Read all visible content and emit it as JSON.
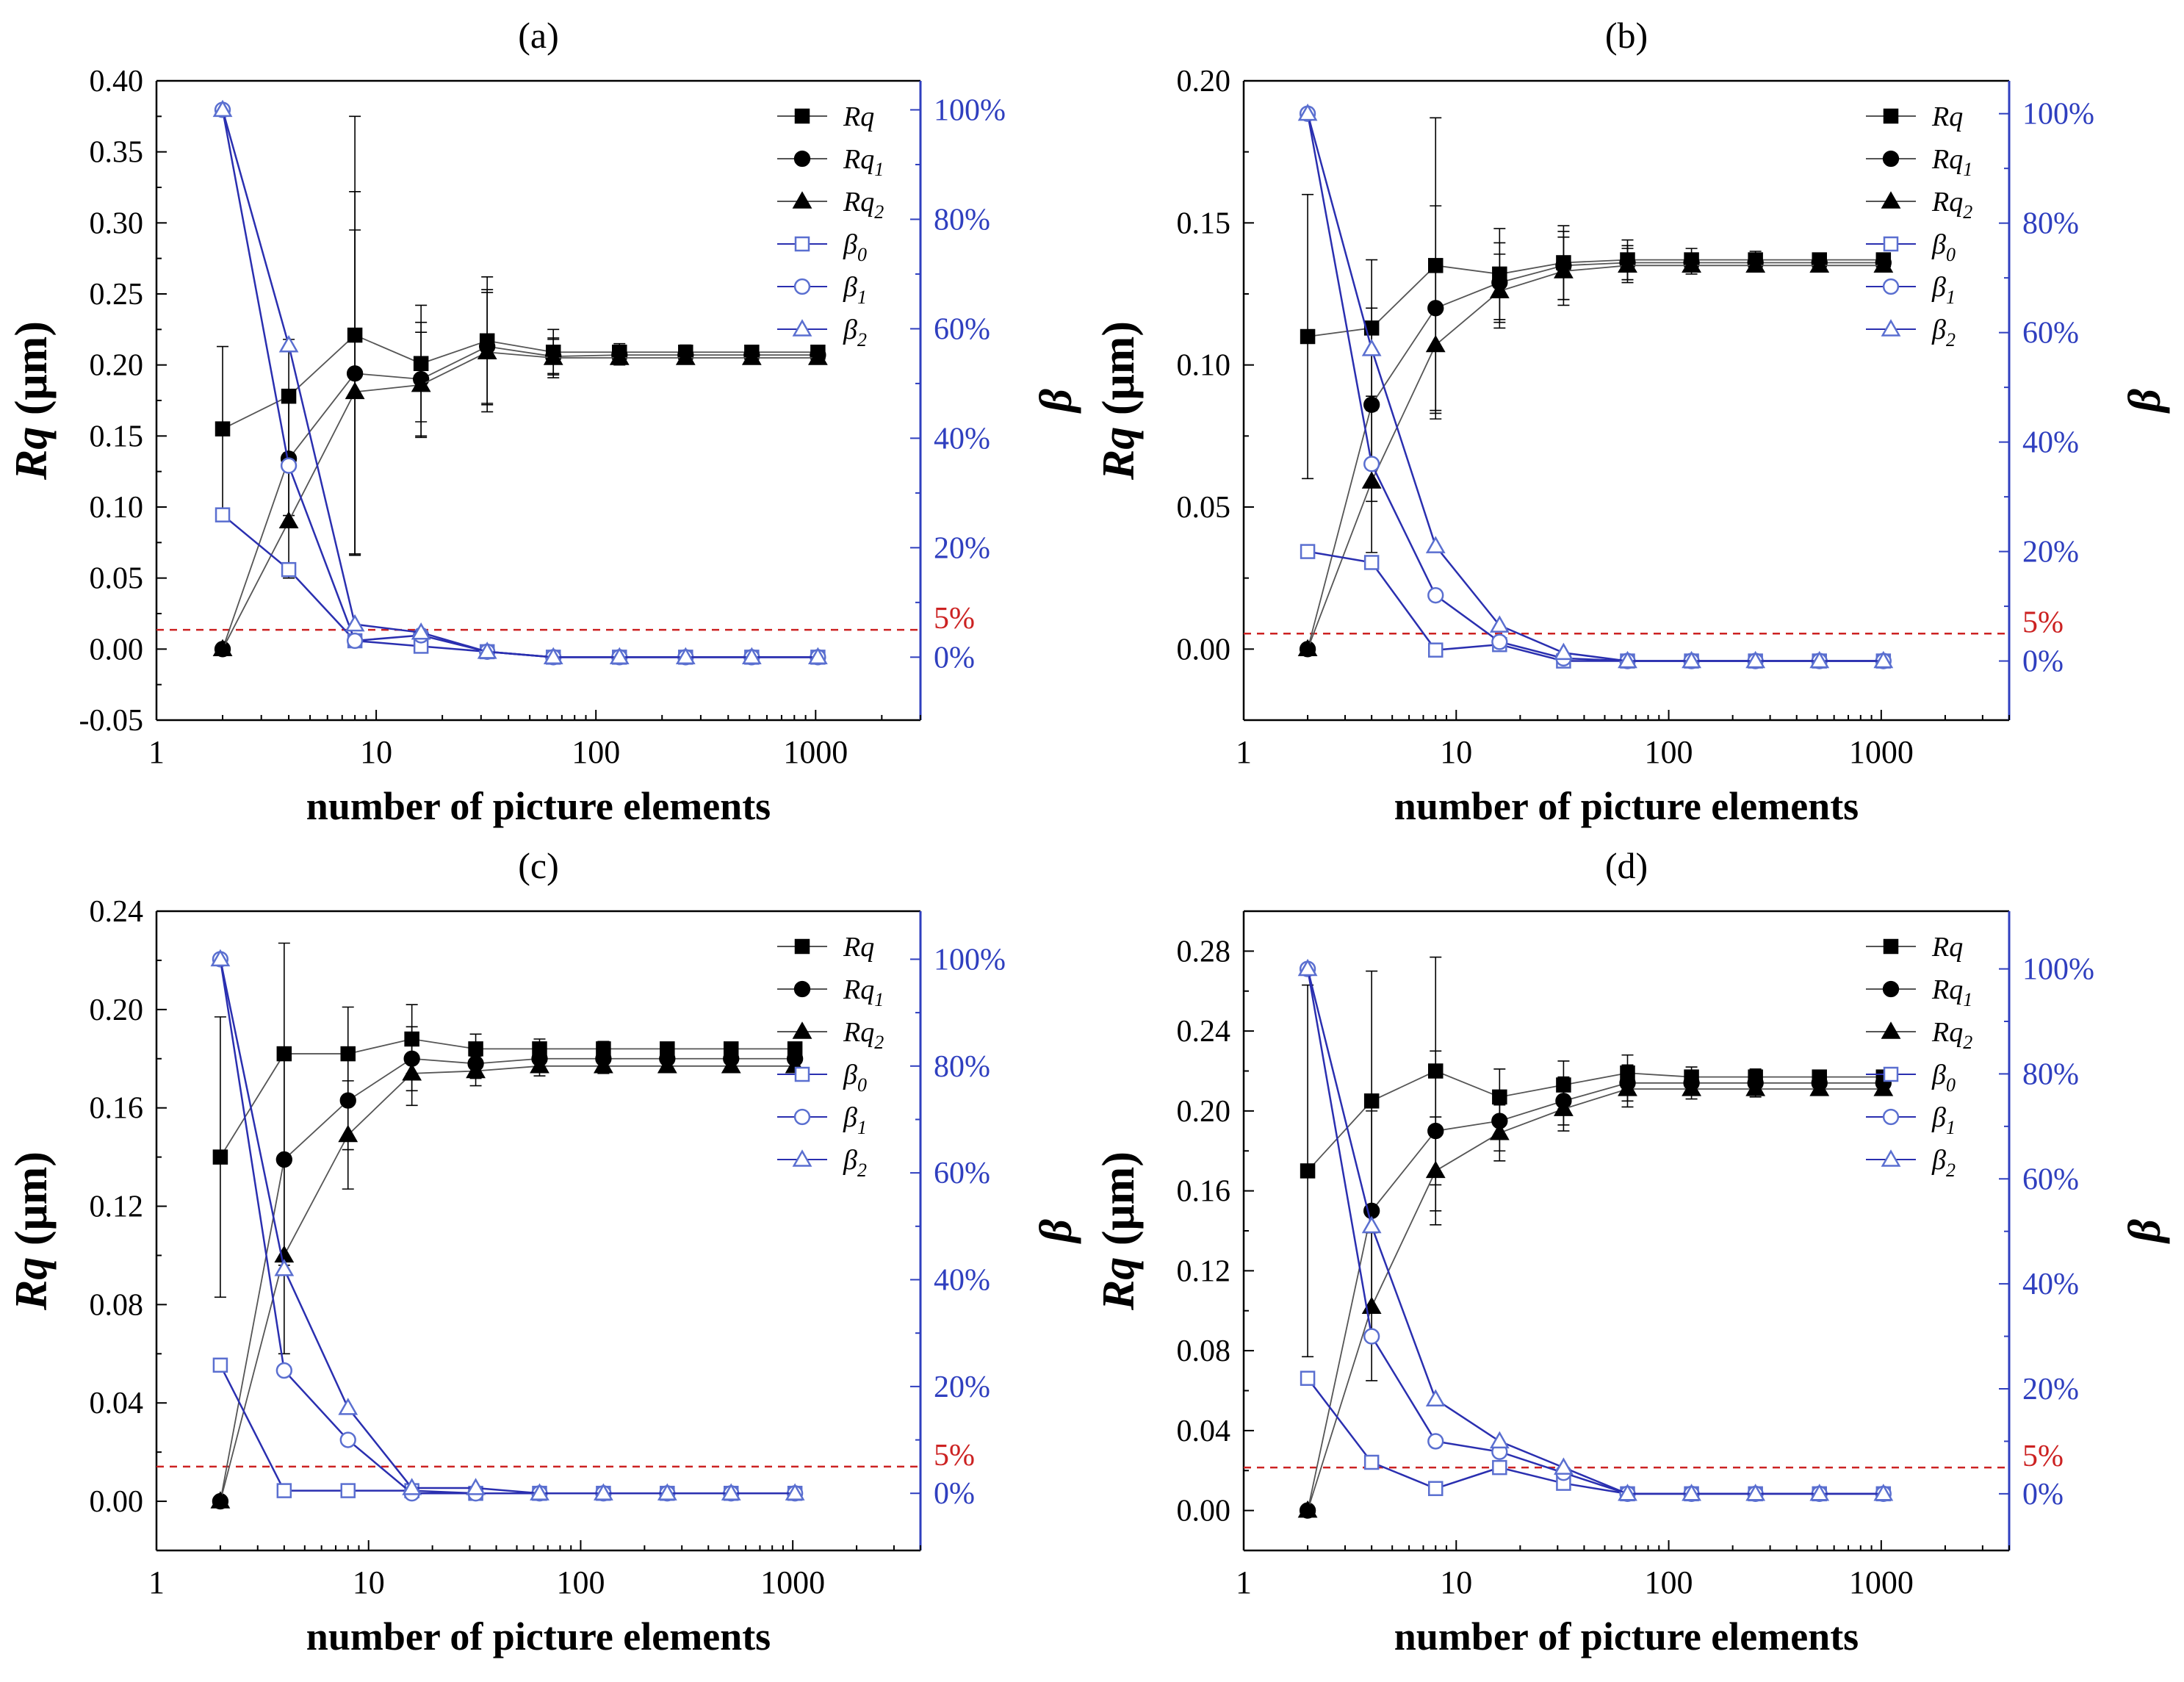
{
  "figure": {
    "panel_labels": [
      "(a)",
      "(b)",
      "(c)",
      "(d)"
    ],
    "common": {
      "xlabel": "number of picture elements",
      "ylabel_main": "Rq",
      "ylabel_unit": " (μm)",
      "ylabel_right": "β",
      "x_ticks": [
        1,
        10,
        100,
        1000
      ],
      "x_tick_labels": [
        "1",
        "10",
        "100",
        "1000"
      ],
      "right_ticks": [
        0,
        20,
        40,
        60,
        80,
        100
      ],
      "right_tick_labels": [
        "0%",
        "20%",
        "40%",
        "60%",
        "80%",
        "100%"
      ],
      "threshold_label": "5%",
      "threshold_percent": 5,
      "legend": [
        {
          "base": "Rq",
          "sub": "",
          "marker": "square-filled",
          "color": "#000000"
        },
        {
          "base": "Rq",
          "sub": "1",
          "marker": "circle-filled",
          "color": "#000000"
        },
        {
          "base": "Rq",
          "sub": "2",
          "marker": "triangle-filled",
          "color": "#000000"
        },
        {
          "base": "β",
          "sub": "0",
          "marker": "square-open",
          "color": "#3b4fc4"
        },
        {
          "base": "β",
          "sub": "1",
          "marker": "circle-open",
          "color": "#3b4fc4"
        },
        {
          "base": "β",
          "sub": "2",
          "marker": "triangle-open",
          "color": "#3b4fc4"
        }
      ]
    },
    "colors": {
      "black": "#000000",
      "beta_marker": "#5a6fd0",
      "beta_line": "#2a2fb0",
      "right_axis": "#2f3fbf",
      "threshold": "#cc2222"
    }
  },
  "chart_data": [
    {
      "type": "scatter",
      "panel": "(a)",
      "xscale": "log",
      "xlim": [
        1,
        3000
      ],
      "ylim": [
        -0.05,
        0.4
      ],
      "yticks": [
        -0.05,
        0.0,
        0.05,
        0.1,
        0.15,
        0.2,
        0.25,
        0.3,
        0.35,
        0.4
      ],
      "ytick_labels": [
        "-0.05",
        "0.00",
        "0.05",
        "0.10",
        "0.15",
        "0.20",
        "0.25",
        "0.30",
        "0.35",
        "0.40"
      ],
      "right_lim_percent": [
        -11.5,
        105.3
      ],
      "x": [
        2,
        4,
        8,
        16,
        32,
        64,
        128,
        256,
        512,
        1024
      ],
      "series": [
        {
          "name": "Rq",
          "axis": "left",
          "values": [
            0.155,
            0.178,
            0.221,
            0.201,
            0.217,
            0.209,
            0.209,
            0.209,
            0.209,
            0.209
          ],
          "err": [
            0.058,
            0.04,
            0.154,
            0.041,
            0.045,
            0.016,
            0.006,
            0.005,
            0.004,
            0.004
          ]
        },
        {
          "name": "Rq1",
          "axis": "left",
          "values": [
            0.0,
            0.134,
            0.194,
            0.19,
            0.213,
            0.206,
            0.207,
            0.207,
            0.207,
            0.207
          ],
          "err": [
            0.0,
            0.04,
            0.128,
            0.04,
            0.04,
            0.012,
            0.005,
            0.004,
            0.003,
            0.003
          ]
        },
        {
          "name": "Rq2",
          "axis": "left",
          "values": [
            0.0,
            0.09,
            0.181,
            0.186,
            0.209,
            0.205,
            0.205,
            0.205,
            0.205,
            0.205
          ],
          "err": [
            0.0,
            0.04,
            0.114,
            0.037,
            0.042,
            0.014,
            0.005,
            0.004,
            0.003,
            0.003
          ]
        },
        {
          "name": "β0",
          "axis": "right",
          "values": [
            26.0,
            16.0,
            3.0,
            2.0,
            1.0,
            0.0,
            0.0,
            0.0,
            0.0,
            0.0
          ]
        },
        {
          "name": "β1",
          "axis": "right",
          "values": [
            100.0,
            35.0,
            3.0,
            4.0,
            1.0,
            0.0,
            0.0,
            0.0,
            0.0,
            0.0
          ]
        },
        {
          "name": "β2",
          "axis": "right",
          "values": [
            100.0,
            57.0,
            6.0,
            4.5,
            1.0,
            0.0,
            0.0,
            0.0,
            0.0,
            0.0
          ]
        }
      ]
    },
    {
      "type": "scatter",
      "panel": "(b)",
      "xscale": "log",
      "xlim": [
        1,
        4000
      ],
      "ylim": [
        -0.025,
        0.2
      ],
      "yticks": [
        0.0,
        0.05,
        0.1,
        0.15,
        0.2
      ],
      "ytick_labels": [
        "0.00",
        "0.05",
        "0.10",
        "0.15",
        "0.20"
      ],
      "right_lim_percent": [
        -10.8,
        106.0
      ],
      "x": [
        2,
        4,
        8,
        16,
        32,
        64,
        128,
        256,
        512,
        1024
      ],
      "series": [
        {
          "name": "Rq",
          "axis": "left",
          "values": [
            0.11,
            0.113,
            0.135,
            0.132,
            0.136,
            0.137,
            0.137,
            0.137,
            0.137,
            0.137
          ],
          "err": [
            0.05,
            0.024,
            0.052,
            0.016,
            0.013,
            0.007,
            0.004,
            0.003,
            0.002,
            0.002
          ]
        },
        {
          "name": "Rq1",
          "axis": "left",
          "values": [
            0.0,
            0.086,
            0.12,
            0.129,
            0.135,
            0.136,
            0.136,
            0.136,
            0.136,
            0.136
          ],
          "err": [
            0.0,
            0.034,
            0.036,
            0.014,
            0.012,
            0.006,
            0.003,
            0.002,
            0.002,
            0.002
          ]
        },
        {
          "name": "Rq2",
          "axis": "left",
          "values": [
            0.0,
            0.059,
            0.107,
            0.126,
            0.133,
            0.135,
            0.135,
            0.135,
            0.135,
            0.135
          ],
          "err": [
            0.0,
            0.025,
            0.026,
            0.013,
            0.012,
            0.006,
            0.003,
            0.002,
            0.002,
            0.002
          ]
        },
        {
          "name": "β0",
          "axis": "right",
          "values": [
            20.0,
            18.0,
            2.0,
            3.0,
            0.0,
            0.0,
            0.0,
            0.0,
            0.0,
            0.0
          ]
        },
        {
          "name": "β1",
          "axis": "right",
          "values": [
            100.0,
            36.0,
            12.0,
            3.5,
            0.5,
            0.0,
            0.0,
            0.0,
            0.0,
            0.0
          ]
        },
        {
          "name": "β2",
          "axis": "right",
          "values": [
            100.0,
            57.0,
            21.0,
            6.5,
            1.5,
            0.0,
            0.0,
            0.0,
            0.0,
            0.0
          ]
        }
      ]
    },
    {
      "type": "scatter",
      "panel": "(c)",
      "xscale": "log",
      "xlim": [
        1,
        4000
      ],
      "ylim": [
        -0.02,
        0.24
      ],
      "yticks": [
        0.0,
        0.04,
        0.08,
        0.12,
        0.16,
        0.2,
        0.24
      ],
      "ytick_labels": [
        "0.00",
        "0.04",
        "0.08",
        "0.12",
        "0.16",
        "0.20",
        "0.24"
      ],
      "right_lim_percent": [
        -10.7,
        109.0
      ],
      "x": [
        2,
        4,
        8,
        16,
        32,
        64,
        128,
        256,
        512,
        1024
      ],
      "series": [
        {
          "name": "Rq",
          "axis": "left",
          "values": [
            0.14,
            0.182,
            0.182,
            0.188,
            0.184,
            0.184,
            0.184,
            0.184,
            0.184,
            0.184
          ],
          "err": [
            0.057,
            0.045,
            0.019,
            0.014,
            0.006,
            0.004,
            0.003,
            0.002,
            0.002,
            0.002
          ]
        },
        {
          "name": "Rq1",
          "axis": "left",
          "values": [
            0.0,
            0.139,
            0.163,
            0.18,
            0.178,
            0.18,
            0.18,
            0.18,
            0.18,
            0.18
          ],
          "err": [
            0.0,
            0.043,
            0.02,
            0.013,
            0.006,
            0.004,
            0.003,
            0.002,
            0.002,
            0.002
          ]
        },
        {
          "name": "Rq2",
          "axis": "left",
          "values": [
            0.0,
            0.1,
            0.149,
            0.174,
            0.175,
            0.177,
            0.177,
            0.177,
            0.177,
            0.177
          ],
          "err": [
            0.0,
            0.04,
            0.022,
            0.013,
            0.006,
            0.004,
            0.003,
            0.002,
            0.002,
            0.002
          ]
        },
        {
          "name": "β0",
          "axis": "right",
          "values": [
            24.0,
            0.5,
            0.5,
            0.5,
            0.0,
            0.0,
            0.0,
            0.0,
            0.0,
            0.0
          ]
        },
        {
          "name": "β1",
          "axis": "right",
          "values": [
            100.0,
            23.0,
            10.0,
            0.0,
            0.0,
            0.0,
            0.0,
            0.0,
            0.0,
            0.0
          ]
        },
        {
          "name": "β2",
          "axis": "right",
          "values": [
            100.0,
            42.0,
            16.0,
            1.0,
            1.0,
            0.0,
            0.0,
            0.0,
            0.0,
            0.0
          ]
        }
      ]
    },
    {
      "type": "scatter",
      "panel": "(d)",
      "xscale": "log",
      "xlim": [
        1,
        4000
      ],
      "ylim": [
        -0.02,
        0.3
      ],
      "yticks": [
        0.0,
        0.04,
        0.08,
        0.12,
        0.16,
        0.2,
        0.24,
        0.28
      ],
      "ytick_labels": [
        "0.00",
        "0.04",
        "0.08",
        "0.12",
        "0.16",
        "0.20",
        "0.24",
        "0.28"
      ],
      "right_lim_percent": [
        -10.8,
        111.0
      ],
      "x": [
        2,
        4,
        8,
        16,
        32,
        64,
        128,
        256,
        512,
        1024
      ],
      "series": [
        {
          "name": "Rq",
          "axis": "left",
          "values": [
            0.17,
            0.205,
            0.22,
            0.207,
            0.213,
            0.219,
            0.217,
            0.217,
            0.217,
            0.217
          ],
          "err": [
            0.093,
            0.065,
            0.057,
            0.014,
            0.012,
            0.009,
            0.005,
            0.004,
            0.003,
            0.003
          ]
        },
        {
          "name": "Rq1",
          "axis": "left",
          "values": [
            0.0,
            0.15,
            0.19,
            0.195,
            0.205,
            0.214,
            0.214,
            0.214,
            0.214,
            0.214
          ],
          "err": [
            0.0,
            0.05,
            0.04,
            0.015,
            0.012,
            0.009,
            0.005,
            0.004,
            0.003,
            0.003
          ]
        },
        {
          "name": "Rq2",
          "axis": "left",
          "values": [
            0.0,
            0.102,
            0.17,
            0.189,
            0.201,
            0.211,
            0.211,
            0.211,
            0.211,
            0.211
          ],
          "err": [
            0.0,
            0.037,
            0.027,
            0.014,
            0.011,
            0.009,
            0.005,
            0.004,
            0.003,
            0.003
          ]
        },
        {
          "name": "β0",
          "axis": "right",
          "values": [
            22.0,
            6.0,
            1.0,
            5.0,
            2.0,
            0.0,
            0.0,
            0.0,
            0.0,
            0.0
          ]
        },
        {
          "name": "β1",
          "axis": "right",
          "values": [
            100.0,
            30.0,
            10.0,
            8.0,
            4.0,
            0.0,
            0.0,
            0.0,
            0.0,
            0.0
          ]
        },
        {
          "name": "β2",
          "axis": "right",
          "values": [
            100.0,
            51.0,
            18.0,
            10.0,
            5.0,
            0.0,
            0.0,
            0.0,
            0.0,
            0.0
          ]
        }
      ]
    }
  ]
}
